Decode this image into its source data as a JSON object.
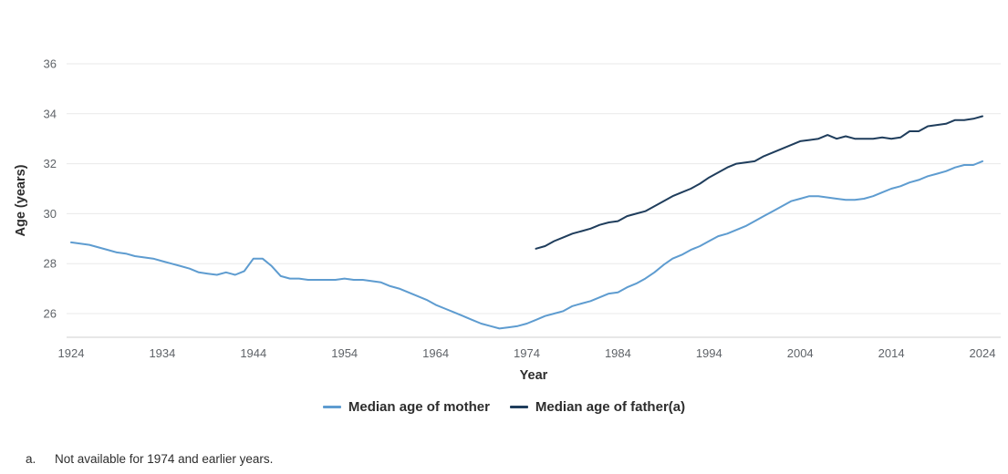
{
  "chart_data": {
    "type": "line",
    "title": "",
    "xlabel": "Year",
    "ylabel": "Age (years)",
    "x_ticks": [
      1924,
      1934,
      1944,
      1954,
      1964,
      1974,
      1984,
      1994,
      2004,
      2014,
      2024
    ],
    "y_ticks": [
      26,
      28,
      30,
      32,
      34,
      36
    ],
    "xlim": [
      1924,
      2024
    ],
    "ylim": [
      25,
      37
    ],
    "grid": "horizontal-only",
    "legend_position": "bottom-center",
    "series": [
      {
        "name": "Median age of mother",
        "color": "#5e9cd0",
        "start_year": 1924,
        "step": 1,
        "values": [
          28.85,
          28.8,
          28.75,
          28.65,
          28.55,
          28.45,
          28.4,
          28.3,
          28.25,
          28.2,
          28.1,
          28.0,
          27.9,
          27.8,
          27.65,
          27.6,
          27.55,
          27.65,
          27.55,
          27.7,
          28.2,
          28.2,
          27.9,
          27.5,
          27.4,
          27.4,
          27.35,
          27.35,
          27.35,
          27.35,
          27.4,
          27.35,
          27.35,
          27.3,
          27.25,
          27.1,
          27.0,
          26.85,
          26.7,
          26.55,
          26.35,
          26.2,
          26.05,
          25.9,
          25.75,
          25.6,
          25.5,
          25.4,
          25.45,
          25.5,
          25.6,
          25.75,
          25.9,
          26.0,
          26.1,
          26.3,
          26.4,
          26.5,
          26.65,
          26.8,
          26.85,
          27.05,
          27.2,
          27.4,
          27.65,
          27.95,
          28.2,
          28.35,
          28.55,
          28.7,
          28.9,
          29.1,
          29.2,
          29.35,
          29.5,
          29.7,
          29.9,
          30.1,
          30.3,
          30.5,
          30.6,
          30.7,
          30.7,
          30.65,
          30.6,
          30.55,
          30.55,
          30.6,
          30.7,
          30.85,
          31.0,
          31.1,
          31.25,
          31.35,
          31.5,
          31.6,
          31.7,
          31.85,
          31.95,
          31.95,
          32.1
        ]
      },
      {
        "name": "Median age of father(a)",
        "color": "#1f3d5c",
        "start_year": 1975,
        "step": 1,
        "values": [
          28.6,
          28.7,
          28.9,
          29.05,
          29.2,
          29.3,
          29.4,
          29.55,
          29.65,
          29.7,
          29.9,
          30.0,
          30.1,
          30.3,
          30.5,
          30.7,
          30.85,
          31.0,
          31.2,
          31.45,
          31.65,
          31.85,
          32.0,
          32.05,
          32.1,
          32.3,
          32.45,
          32.6,
          32.75,
          32.9,
          32.95,
          33.0,
          33.15,
          33.0,
          33.1,
          33.0,
          33.0,
          33.0,
          33.05,
          33.0,
          33.05,
          33.3,
          33.3,
          33.5,
          33.55,
          33.6,
          33.75,
          33.75,
          33.8,
          33.9
        ]
      }
    ]
  },
  "footnote": {
    "marker": "a.",
    "text": "Not available for 1974 and earlier years."
  }
}
